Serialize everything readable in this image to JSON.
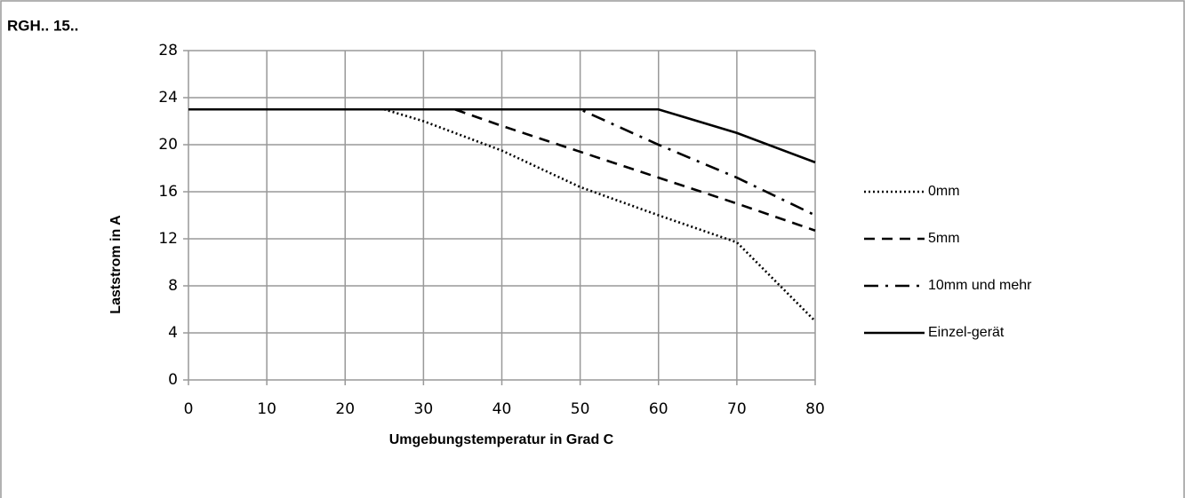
{
  "chart_data": {
    "type": "line",
    "title": "RGH.. 15..",
    "x_label": "Umgebungstemperatur in Grad C",
    "y_label": "Laststrom in A",
    "xlim": [
      0,
      80
    ],
    "xticks": [
      0,
      10,
      20,
      30,
      40,
      50,
      60,
      70,
      80
    ],
    "ylim": [
      0,
      28
    ],
    "yticks": [
      0,
      4,
      8,
      12,
      16,
      20,
      24,
      28
    ],
    "grid": true,
    "legend": "right",
    "series": [
      {
        "name": "0mm",
        "color": "#000000",
        "line_style": "dotted",
        "x": [
          0,
          25,
          30,
          40,
          50,
          60,
          70,
          80
        ],
        "values": [
          23,
          23,
          22,
          19.5,
          16.4,
          14,
          11.7,
          5
        ]
      },
      {
        "name": "5mm",
        "color": "#000000",
        "line_style": "dashed",
        "x": [
          0,
          34,
          40,
          50,
          60,
          70,
          80
        ],
        "values": [
          23,
          23,
          21.6,
          19.4,
          17.2,
          15,
          12.7
        ]
      },
      {
        "name": "10mm und mehr",
        "color": "#000000",
        "line_style": "dashdot",
        "x": [
          0,
          50,
          60,
          70,
          80
        ],
        "values": [
          23,
          23,
          20,
          17.2,
          14
        ]
      },
      {
        "name": "Einzel-gerät",
        "color": "#000000",
        "line_style": "solid",
        "x": [
          0,
          60,
          70,
          80
        ],
        "values": [
          23,
          23,
          21,
          18.5
        ]
      }
    ]
  }
}
